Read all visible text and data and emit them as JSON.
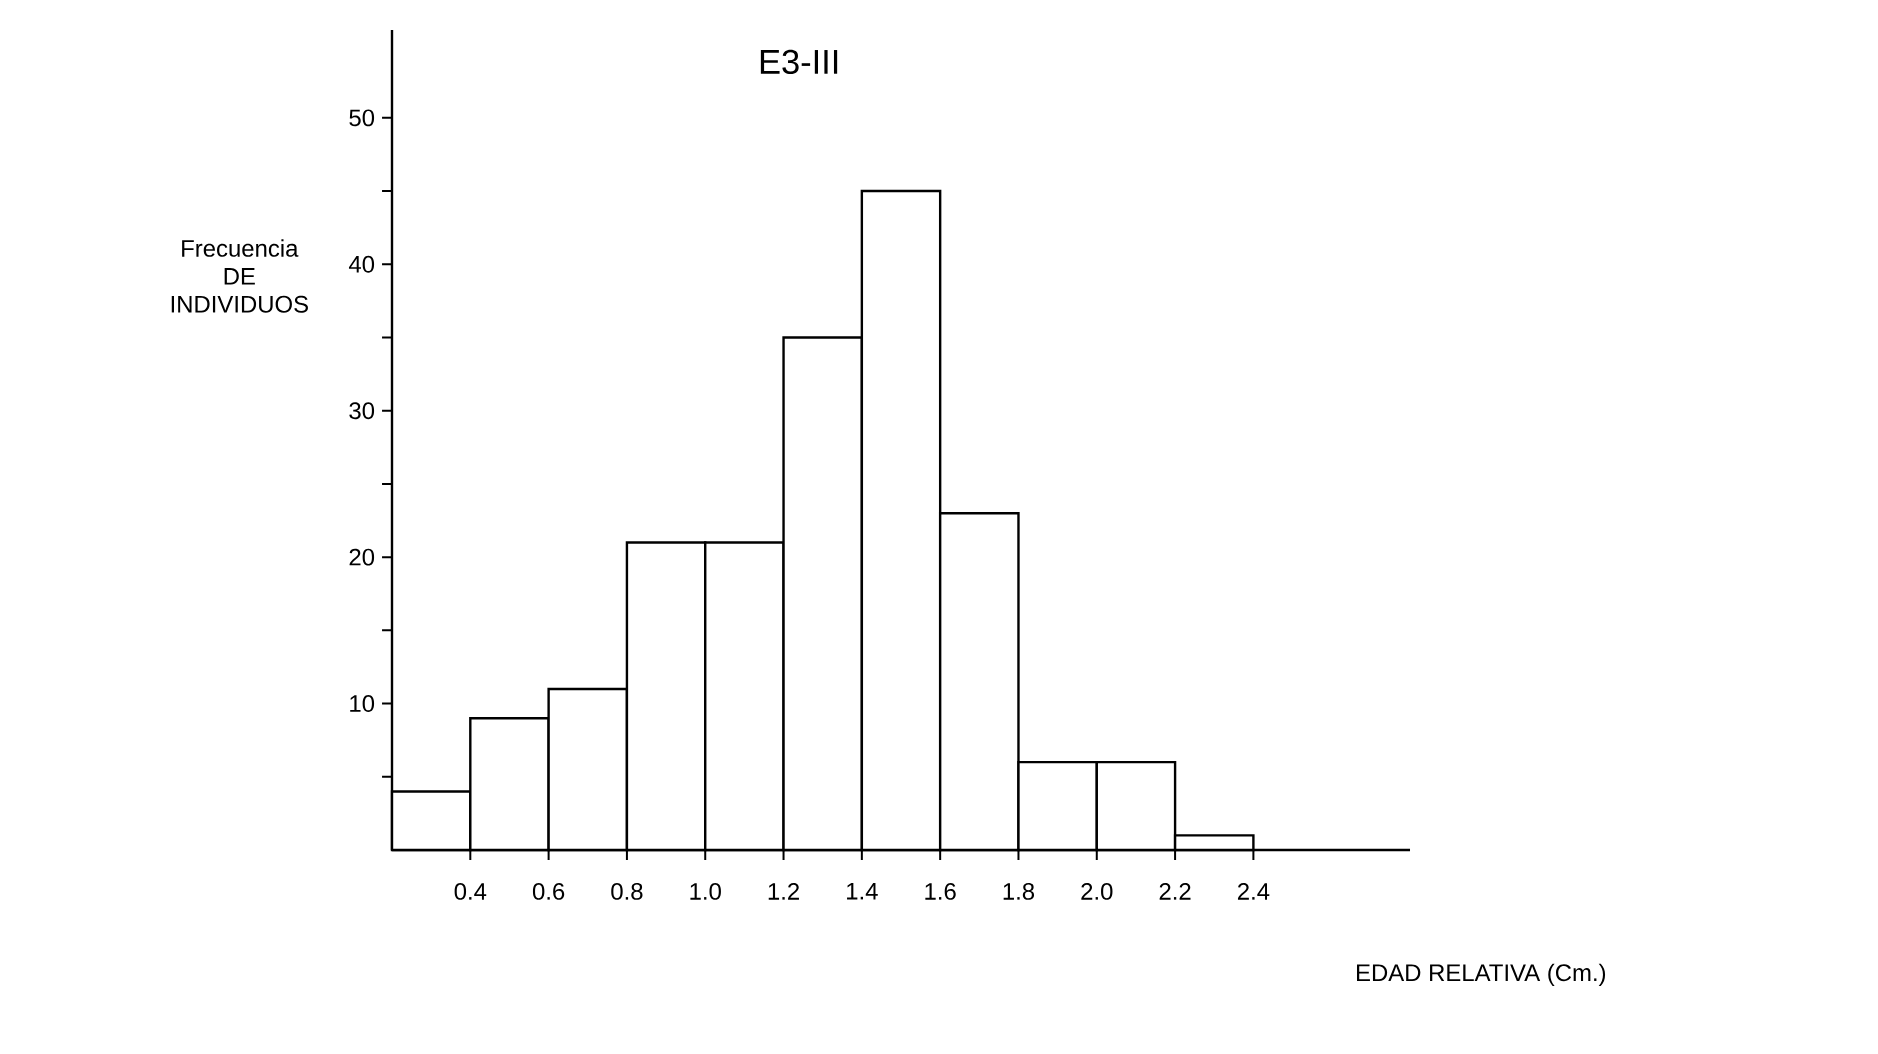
{
  "chart_data": {
    "type": "histogram",
    "title": "E3-III",
    "xlabel": "EDAD RELATIVA (Cm.)",
    "ylabel": "Frecuencia DE INDIVIDUOS",
    "bins": [
      0.2,
      0.4,
      0.6,
      0.8,
      1.0,
      1.2,
      1.4,
      1.6,
      1.8,
      2.0,
      2.2,
      2.4
    ],
    "values": [
      4,
      9,
      11,
      21,
      21,
      35,
      45,
      23,
      6,
      6,
      1
    ],
    "color": "#ffffff",
    "xlim": [
      0.2,
      2.8
    ],
    "ylim": [
      0,
      56
    ],
    "xticks": [
      0.4,
      0.6,
      0.8,
      {
        "value": 1.0,
        "label": "1.0"
      },
      1.2,
      1.4,
      1.6,
      1.8,
      {
        "value": 2.0,
        "label": "2.0"
      },
      2.2,
      2.4
    ],
    "yticks": [
      {
        "value": 5,
        "label": null
      },
      10,
      {
        "value": 15,
        "label": null
      },
      20,
      {
        "value": 25,
        "label": null
      },
      30,
      {
        "value": 35,
        "label": null
      },
      40,
      {
        "value": 45,
        "label": null
      },
      50
    ],
    "grid": false
  }
}
